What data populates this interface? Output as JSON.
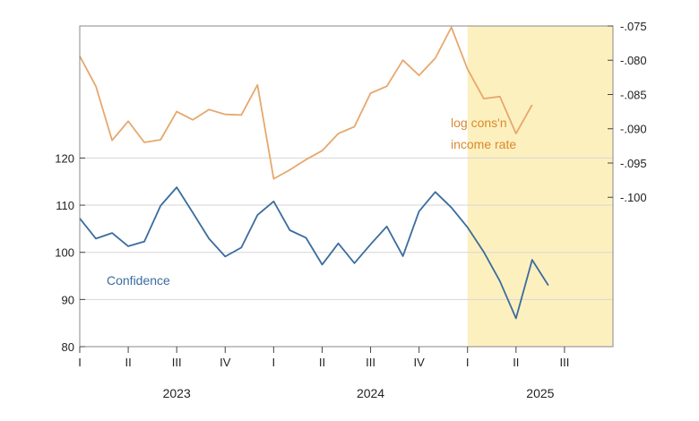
{
  "chart_data": {
    "type": "line",
    "title": "",
    "x_axis": {
      "quarter_labels": [
        "I",
        "II",
        "III",
        "IV",
        "I",
        "II",
        "III",
        "IV",
        "I",
        "II",
        "III"
      ],
      "year_labels": [
        "2023",
        "2024",
        "2025"
      ],
      "xlim": [
        "2023-01",
        "2025-10"
      ]
    },
    "left_axis": {
      "ylim": [
        80,
        148
      ],
      "ticks": [
        80,
        90,
        100,
        110,
        120
      ],
      "tick_labels": [
        "80",
        "90",
        "100",
        "110",
        "120"
      ]
    },
    "right_axis": {
      "ylim": [
        -0.1218,
        -0.075
      ],
      "ticks": [
        -0.1,
        -0.095,
        -0.09,
        -0.085,
        -0.08,
        -0.075
      ],
      "tick_labels": [
        "-.100",
        "-.095",
        "-.090",
        "-.085",
        "-.080",
        "-.075"
      ]
    },
    "shaded_region": {
      "from": "2025-01",
      "to": "2025-10",
      "color": "#fdf0bf"
    },
    "grid": true,
    "series": [
      {
        "name": "Confidence",
        "axis": "left",
        "color": "#3b6c9e",
        "x": [
          "2023-01",
          "2023-02",
          "2023-03",
          "2023-04",
          "2023-05",
          "2023-06",
          "2023-07",
          "2023-08",
          "2023-09",
          "2023-10",
          "2023-11",
          "2023-12",
          "2024-01",
          "2024-02",
          "2024-03",
          "2024-04",
          "2024-05",
          "2024-06",
          "2024-07",
          "2024-08",
          "2024-09",
          "2024-10",
          "2024-11",
          "2024-12",
          "2025-01",
          "2025-02",
          "2025-03",
          "2025-04",
          "2025-05",
          "2025-06"
        ],
        "values": [
          107.2,
          102.9,
          104.1,
          101.3,
          102.3,
          109.9,
          113.8,
          108.4,
          102.9,
          99.1,
          101.0,
          107.9,
          110.8,
          104.7,
          103.1,
          97.4,
          101.9,
          97.7,
          101.7,
          105.5,
          99.2,
          108.7,
          112.8,
          109.5,
          105.3,
          100.1,
          93.9,
          86.0,
          98.4,
          93.0
        ]
      },
      {
        "name": "log cons'n income rate",
        "axis": "right",
        "color": "#e6a86c",
        "x": [
          "2023-01",
          "2023-02",
          "2023-03",
          "2023-04",
          "2023-05",
          "2023-06",
          "2023-07",
          "2023-08",
          "2023-09",
          "2023-10",
          "2023-11",
          "2023-12",
          "2024-01",
          "2024-02",
          "2024-03",
          "2024-04",
          "2024-05",
          "2024-06",
          "2024-07",
          "2024-08",
          "2024-09",
          "2024-10",
          "2024-11",
          "2024-12",
          "2025-01",
          "2025-02",
          "2025-03",
          "2025-04",
          "2025-05"
        ],
        "values": [
          -0.0794,
          -0.0838,
          -0.0917,
          -0.0889,
          -0.092,
          -0.0916,
          -0.0875,
          -0.0887,
          -0.0872,
          -0.0879,
          -0.088,
          -0.0836,
          -0.0973,
          -0.096,
          -0.0945,
          -0.0932,
          -0.0907,
          -0.0897,
          -0.0848,
          -0.0838,
          -0.08,
          -0.0822,
          -0.0797,
          -0.0752,
          -0.0813,
          -0.0856,
          -0.0853,
          -0.0907,
          -0.0865
        ]
      }
    ],
    "annotations": {
      "confidence": "Confidence",
      "income_line1": "log cons'n",
      "income_line2": "income rate"
    }
  }
}
